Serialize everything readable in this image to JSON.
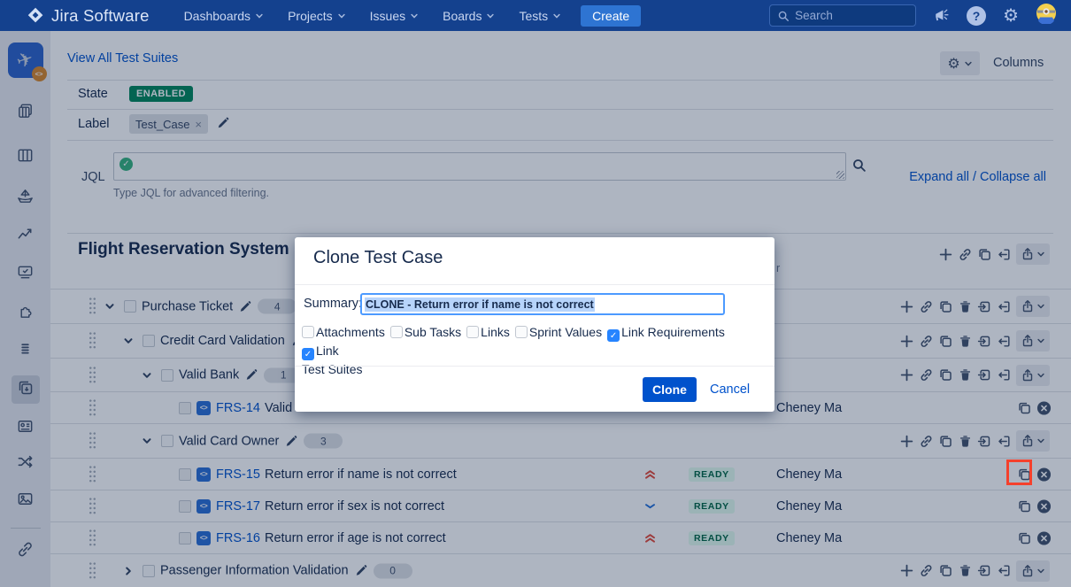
{
  "nav": {
    "brand": "Jira Software",
    "items": [
      {
        "label": "Dashboards"
      },
      {
        "label": "Projects"
      },
      {
        "label": "Issues"
      },
      {
        "label": "Boards"
      },
      {
        "label": "Tests"
      }
    ],
    "create_label": "Create",
    "search_placeholder": "Search",
    "help_glyph": "?"
  },
  "sidebar": {
    "icons": [
      {
        "name": "project-avatar"
      },
      {
        "name": "backlog-icon"
      },
      {
        "name": "board-columns-icon"
      },
      {
        "name": "releases-icon"
      },
      {
        "name": "reports-icon"
      },
      {
        "name": "test-sessions-icon"
      },
      {
        "name": "addons-puzzle-icon"
      },
      {
        "name": "test-plans-icon"
      },
      {
        "name": "test-suites-icon",
        "active": true
      },
      {
        "name": "profile-card-icon"
      },
      {
        "name": "shuffle-icon"
      },
      {
        "name": "gallery-icon"
      },
      {
        "name": "divider"
      },
      {
        "name": "link-icon"
      }
    ]
  },
  "toolbar": {
    "view_all_label": "View All Test Suites",
    "columns_label": "Columns"
  },
  "filters": {
    "state_label": "State",
    "state_value": "ENABLED",
    "label_label": "Label",
    "label_chip": "Test_Case",
    "chip_remove_glyph": "×",
    "jql_label": "JQL",
    "jql_help": "Type JQL for advanced filtering.",
    "expand_all": "Expand all",
    "link_separator": " / ",
    "collapse_all": "Collapse all"
  },
  "suite": {
    "title": "Flight Reservation System",
    "covered_text_fragment": "r"
  },
  "table": {
    "rows": [
      {
        "kind": "group",
        "level": 0,
        "expanded": true,
        "label": "Purchase Ticket",
        "count": "4"
      },
      {
        "kind": "group",
        "level": 1,
        "expanded": true,
        "label": "Credit Card Validation",
        "count": null
      },
      {
        "kind": "group",
        "level": 2,
        "expanded": true,
        "label": "Valid Bank",
        "count": "1"
      },
      {
        "kind": "case",
        "key": "FRS-14",
        "summary": "Valid th",
        "priority": null,
        "status": null,
        "assignee": "Cheney Ma"
      },
      {
        "kind": "group",
        "level": 2,
        "expanded": true,
        "label": "Valid Card Owner",
        "count": "3"
      },
      {
        "kind": "case",
        "key": "FRS-15",
        "summary": "Return error if name is not correct",
        "priority": "highest",
        "status": "READY",
        "assignee": "Cheney Ma",
        "clone_highlighted": true
      },
      {
        "kind": "case",
        "key": "FRS-17",
        "summary": "Return error if sex is not correct",
        "priority": "low",
        "status": "READY",
        "assignee": "Cheney Ma"
      },
      {
        "kind": "case",
        "key": "FRS-16",
        "summary": "Return error if age is not correct",
        "priority": "highest",
        "status": "READY",
        "assignee": "Cheney Ma"
      },
      {
        "kind": "group",
        "level": 1,
        "expanded": false,
        "label": "Passenger Information Validation",
        "count": "0"
      }
    ]
  },
  "modal": {
    "title": "Clone Test Case",
    "summary_label": "Summary:",
    "summary_value": "CLONE - Return error if name is not correct",
    "options": [
      {
        "label": "Attachments",
        "checked": false
      },
      {
        "label": "Sub Tasks",
        "checked": false
      },
      {
        "label": "Links",
        "checked": false
      },
      {
        "label": "Sprint Values",
        "checked": false
      },
      {
        "label": "Link Requirements",
        "checked": true
      },
      {
        "label": "Link Test Suites",
        "checked": true
      }
    ],
    "clone_label": "Clone",
    "cancel_label": "Cancel"
  },
  "colors": {
    "accent": "#0052CC",
    "link": "#0052CC",
    "checked_checkbox": "#2684FF",
    "focus_border": "#4C9AFF",
    "enabled_badge_bg": "#00875A",
    "ready_badge_bg": "#E3FCEF",
    "ready_badge_text": "#006644",
    "priority_high": "#E5493A",
    "priority_low": "#2470D8",
    "click_highlight": "#F5402C",
    "nav_bg": "#14418E",
    "create_button_bg": "#2E74D2"
  }
}
